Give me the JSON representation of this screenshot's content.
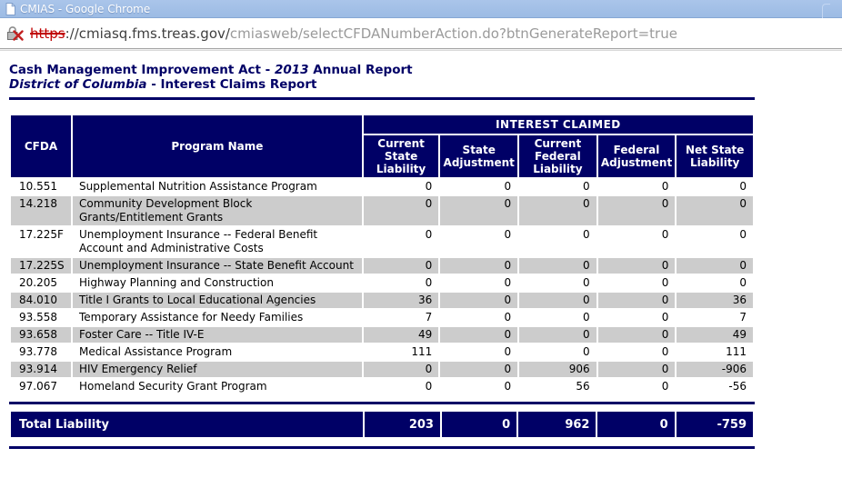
{
  "window": {
    "title": "CMIAS - Google Chrome"
  },
  "address_bar": {
    "protocol": "https",
    "host": "://cmiasq.fms.treas.gov/",
    "path": "cmiasweb/selectCFDANumberAction.do?btnGenerateReport=true"
  },
  "report": {
    "title_prefix": "Cash Management Improvement Act - ",
    "title_year": "2013",
    "title_suffix": " Annual Report",
    "subtitle_region": "District of Columbia",
    "subtitle_suffix": " - Interest Claims Report"
  },
  "table": {
    "headers": {
      "cfda": "CFDA",
      "program_name": "Program Name",
      "group": "INTEREST CLAIMED",
      "columns": [
        "Current State Liability",
        "State Adjustment",
        "Current Federal Liability",
        "Federal Adjustment",
        "Net State Liability"
      ]
    },
    "rows": [
      {
        "cfda": "10.551",
        "program": "Supplemental Nutrition Assistance Program",
        "values": [
          "0",
          "0",
          "0",
          "0",
          "0"
        ]
      },
      {
        "cfda": "14.218",
        "program": "Community Development Block Grants/Entitlement Grants",
        "values": [
          "0",
          "0",
          "0",
          "0",
          "0"
        ]
      },
      {
        "cfda": "17.225F",
        "program": "Unemployment Insurance -- Federal Benefit Account and Administrative Costs",
        "values": [
          "0",
          "0",
          "0",
          "0",
          "0"
        ]
      },
      {
        "cfda": "17.225S",
        "program": "Unemployment Insurance -- State Benefit Account",
        "values": [
          "0",
          "0",
          "0",
          "0",
          "0"
        ]
      },
      {
        "cfda": "20.205",
        "program": "Highway Planning and Construction",
        "values": [
          "0",
          "0",
          "0",
          "0",
          "0"
        ]
      },
      {
        "cfda": "84.010",
        "program": "Title I Grants to Local Educational Agencies",
        "values": [
          "36",
          "0",
          "0",
          "0",
          "36"
        ]
      },
      {
        "cfda": "93.558",
        "program": "Temporary Assistance for Needy Families",
        "values": [
          "7",
          "0",
          "0",
          "0",
          "7"
        ]
      },
      {
        "cfda": "93.658",
        "program": "Foster Care -- Title IV-E",
        "values": [
          "49",
          "0",
          "0",
          "0",
          "49"
        ]
      },
      {
        "cfda": "93.778",
        "program": "Medical Assistance Program",
        "values": [
          "111",
          "0",
          "0",
          "0",
          "111"
        ]
      },
      {
        "cfda": "93.914",
        "program": "HIV Emergency Relief",
        "values": [
          "0",
          "0",
          "906",
          "0",
          "-906"
        ]
      },
      {
        "cfda": "97.067",
        "program": "Homeland Security Grant Program",
        "values": [
          "0",
          "0",
          "56",
          "0",
          "-56"
        ]
      }
    ],
    "total": {
      "label": "Total Liability",
      "values": [
        "203",
        "0",
        "962",
        "0",
        "-759"
      ]
    }
  },
  "colors": {
    "navy": "#000066",
    "shaded_row": "#cccccc",
    "titlebar_blue": "#aac5ea",
    "url_error_red": "#c00000",
    "url_path_gray": "#9a9a9a"
  }
}
